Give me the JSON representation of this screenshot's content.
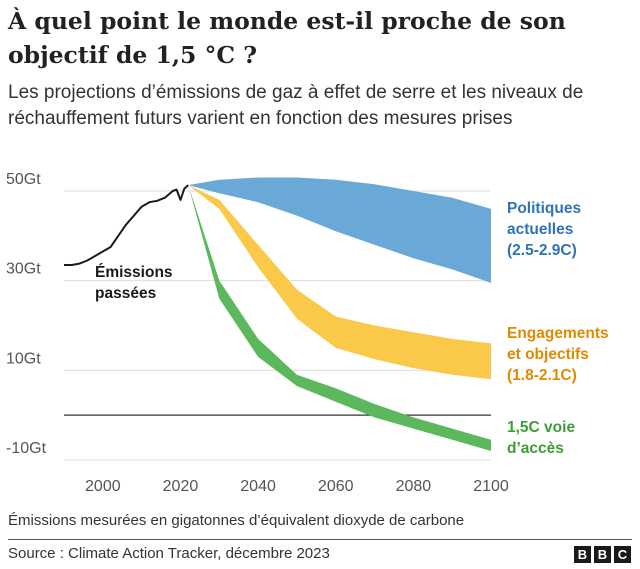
{
  "header": {
    "title": "À quel point le monde est-il proche de son objectif de 1,5 °C ?",
    "subtitle": "Les projections d’émissions de gaz à effet de serre et les niveaux de réchauffement futurs varient en fonction des mesures prises"
  },
  "footer": {
    "note": "Émissions mesurées en gigatonnes d’équivalent dioxyde de carbone",
    "source": "Source : Climate Action Tracker, décembre 2023",
    "logo_letters": [
      "B",
      "B",
      "C"
    ]
  },
  "colors": {
    "past": "#1a1a1a",
    "policies": "#6aa8d8",
    "pledges": "#fac94a",
    "pathway": "#5cb85c",
    "policies_text": "#2f73b8",
    "pledges_text": "#e08a00",
    "pathway_text": "#3f9c35",
    "grid": "#dcdcdc",
    "zero_line": "#333333"
  },
  "chart_data": {
    "type": "area",
    "xlabel": "",
    "ylabel": "",
    "xlim": [
      1990,
      2100
    ],
    "ylim": [
      -10,
      52
    ],
    "x_ticks": [
      2000,
      2020,
      2040,
      2060,
      2080,
      2100
    ],
    "y_ticks": [
      {
        "value": 50,
        "label": "50Gt"
      },
      {
        "value": 30,
        "label": "30Gt"
      },
      {
        "value": 10,
        "label": "10Gt"
      },
      {
        "value": -10,
        "label": "-10Gt"
      }
    ],
    "grid": "horizontal",
    "series": [
      {
        "key": "past",
        "name": "Émissions passées",
        "kind": "line",
        "x": [
          1990,
          1992,
          1994,
          1996,
          1998,
          2000,
          2002,
          2004,
          2006,
          2008,
          2010,
          2012,
          2014,
          2016,
          2018,
          2019,
          2020,
          2021,
          2022
        ],
        "y": [
          33.5,
          33.5,
          33.8,
          34.5,
          35.5,
          36.5,
          37.5,
          40,
          42.5,
          44.5,
          46.5,
          47.5,
          47.8,
          48.5,
          50,
          50.3,
          48,
          50.5,
          51.3
        ]
      },
      {
        "key": "policies",
        "name": "Politiques actuelles (2.5-2.9C)",
        "label_lines": [
          "Politiques",
          "actuelles",
          "(2.5-2.9C)"
        ],
        "kind": "band",
        "x": [
          2022,
          2030,
          2040,
          2050,
          2060,
          2070,
          2080,
          2090,
          2100
        ],
        "upper": [
          51.3,
          52.5,
          53,
          53,
          52.5,
          51.5,
          50,
          48.5,
          46
        ],
        "lower": [
          51.3,
          49.5,
          47.5,
          44.5,
          41,
          38,
          35,
          32.5,
          29.5
        ]
      },
      {
        "key": "pledges",
        "name": "Engagements et objectifs (1.8-2.1C)",
        "label_lines": [
          "Engagements",
          "et objectifs",
          "(1.8-2.1C)"
        ],
        "kind": "band",
        "x": [
          2022,
          2030,
          2040,
          2050,
          2060,
          2070,
          2080,
          2090,
          2100
        ],
        "upper": [
          51.3,
          48,
          38,
          28,
          22,
          20,
          18.5,
          17,
          16
        ],
        "lower": [
          51.3,
          46,
          33,
          21.5,
          15,
          12.5,
          10.5,
          9,
          8
        ]
      },
      {
        "key": "pathway",
        "name": "1,5C voie d’accès",
        "label_lines": [
          "1,5C voie",
          "d’accès"
        ],
        "kind": "band",
        "x": [
          2022,
          2030,
          2040,
          2050,
          2060,
          2070,
          2080,
          2090,
          2100
        ],
        "upper": [
          51.3,
          30,
          17,
          9,
          6,
          2.5,
          -0.5,
          -3,
          -5.5
        ],
        "lower": [
          51.3,
          26,
          13,
          6.5,
          3,
          -0.5,
          -3,
          -5.5,
          -8
        ]
      }
    ]
  }
}
